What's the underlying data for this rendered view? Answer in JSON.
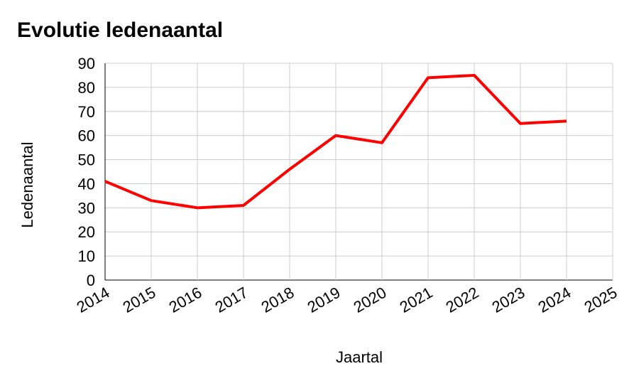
{
  "chart_data": {
    "type": "line",
    "title": "Evolutie ledenaantal",
    "x_label": "Jaartal",
    "y_label": "Ledenaantal",
    "x": [
      2014,
      2015,
      2016,
      2017,
      2018,
      2019,
      2020,
      2021,
      2022,
      2023,
      2024
    ],
    "values": [
      41,
      33,
      30,
      31,
      46,
      60,
      57,
      84,
      85,
      65,
      66
    ],
    "color": "#ff0000",
    "xlim": [
      2014,
      2025
    ],
    "xticks": [
      2014,
      2015,
      2016,
      2017,
      2018,
      2019,
      2020,
      2021,
      2022,
      2023,
      2024,
      2025
    ],
    "ylim": [
      0,
      90
    ],
    "yticks": [
      0,
      10,
      20,
      30,
      40,
      50,
      60,
      70,
      80,
      90
    ],
    "grid": true
  }
}
